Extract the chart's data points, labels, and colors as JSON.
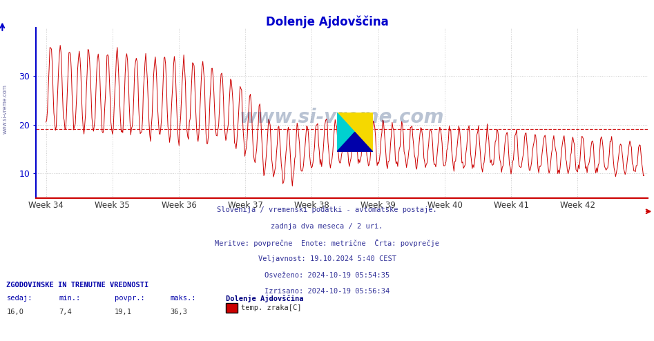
{
  "title": "Dolenje Ajdovščina",
  "title_color": "#0000cc",
  "title_fontsize": 12,
  "bg_color": "#ffffff",
  "plot_bg_color": "#ffffff",
  "line_color": "#cc0000",
  "avg_line_color": "#cc0000",
  "avg_line_value": 19.1,
  "y_axis_color": "#0000cc",
  "x_axis_color": "#cc0000",
  "grid_color": "#cccccc",
  "yticks": [
    10,
    20,
    30
  ],
  "ylim": [
    5,
    40
  ],
  "week_labels": [
    "Week 34",
    "Week 35",
    "Week 36",
    "Week 37",
    "Week 38",
    "Week 39",
    "Week 40",
    "Week 41",
    "Week 42"
  ],
  "footnote_lines": [
    "Slovenija / vremenski podatki - avtomatske postaje.",
    "zadnja dva meseca / 2 uri.",
    "Meritve: povprečne  Enote: metrične  Črta: povprečje",
    "Veljavnost: 19.10.2024 5:40 CEST",
    "Osveženo: 2024-10-19 05:54:35",
    "Izrisano: 2024-10-19 05:56:34"
  ],
  "legend_label": "temp. zraka[C]",
  "legend_color": "#cc0000",
  "sedaj": "16,0",
  "min_val": "7,4",
  "povpr": "19,1",
  "maks": "36,3"
}
